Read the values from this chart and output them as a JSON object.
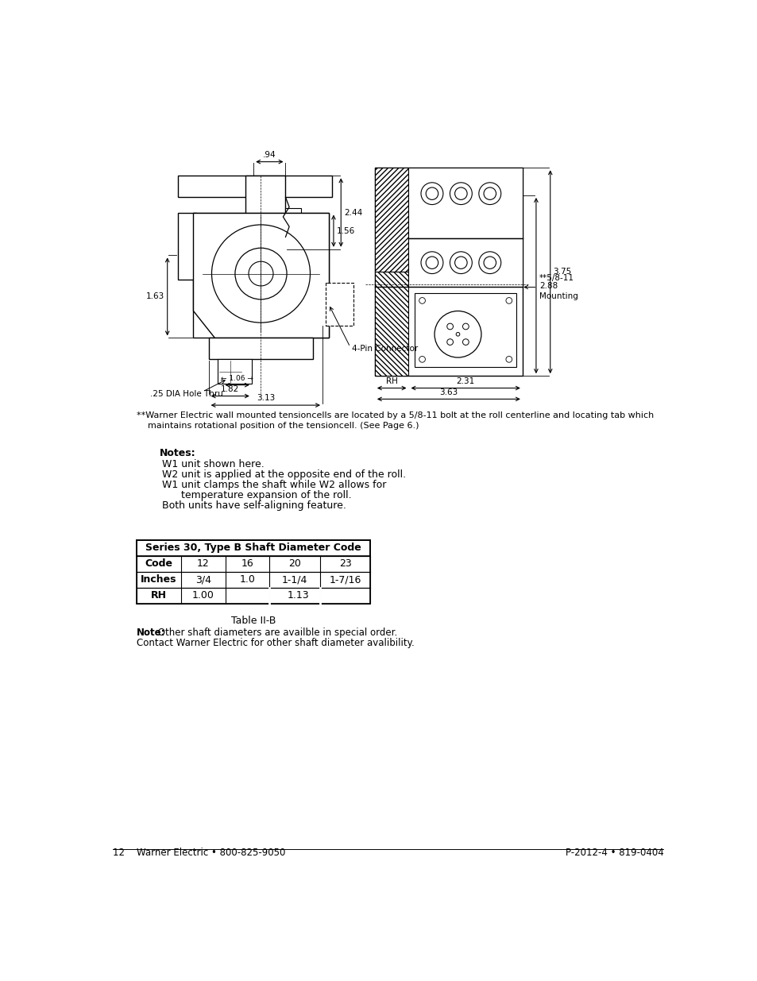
{
  "page_bg": "#ffffff",
  "footer_left": "12    Warner Electric • 800-825-9050",
  "footer_right": "P-2012-4 • 819-0404",
  "footnote_line1": "**Warner Electric wall mounted tensioncells are located by a 5/8-11 bolt at the roll centerline and locating tab which",
  "footnote_line2": "    maintains rotational position of the tensioncell. (See Page 6.)",
  "notes_title": "Notes:",
  "notes_lines": [
    "W1 unit shown here.",
    "W2 unit is applied at the opposite end of the roll.",
    "W1 unit clamps the shaft while W2 allows for",
    "      temperature expansion of the roll.",
    "Both units have self-aligning feature."
  ],
  "table_title": "Series 30, Type B Shaft Diameter Code",
  "table_caption": "Table II-B",
  "table_headers": [
    "Code",
    "12",
    "16",
    "20",
    "23"
  ],
  "table_row1_label": "Inches",
  "table_row1_data": [
    "3/4",
    "1.0",
    "1-1/4",
    "1-7/16"
  ],
  "table_row2_label": "RH",
  "table_row2_col1": "1.00",
  "table_row2_span": "1.13",
  "note_bold": "Note:",
  "note_text": " Other shaft diameters are availble in special order.\nContact Warner Electric for other shaft diameter avalibility."
}
